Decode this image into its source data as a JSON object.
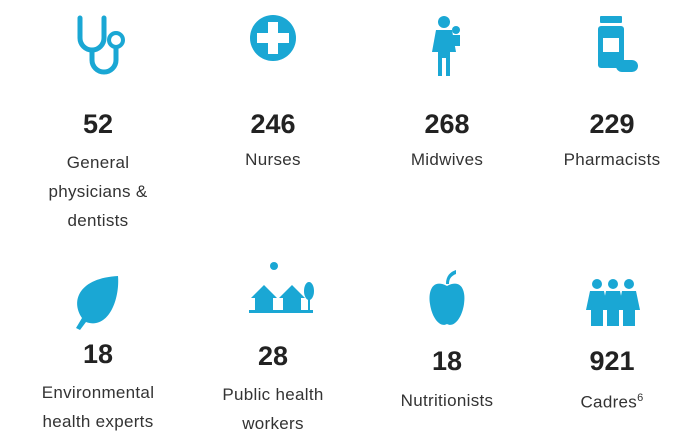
{
  "items": [
    {
      "number": "52",
      "label": [
        "General",
        "physicians &",
        "dentists"
      ]
    },
    {
      "number": "246",
      "label": [
        "Nurses"
      ]
    },
    {
      "number": "268",
      "label": [
        "Midwives"
      ]
    },
    {
      "number": "229",
      "label": [
        "Pharmacists"
      ]
    },
    {
      "number": "18",
      "label": [
        "Environmental",
        "health experts"
      ]
    },
    {
      "number": "28",
      "label": [
        "Public health",
        "workers"
      ]
    },
    {
      "number": "18",
      "label": [
        "Nutritionists"
      ]
    },
    {
      "number": "921",
      "label": [
        "Cadres"
      ],
      "footnote": "6"
    }
  ]
}
